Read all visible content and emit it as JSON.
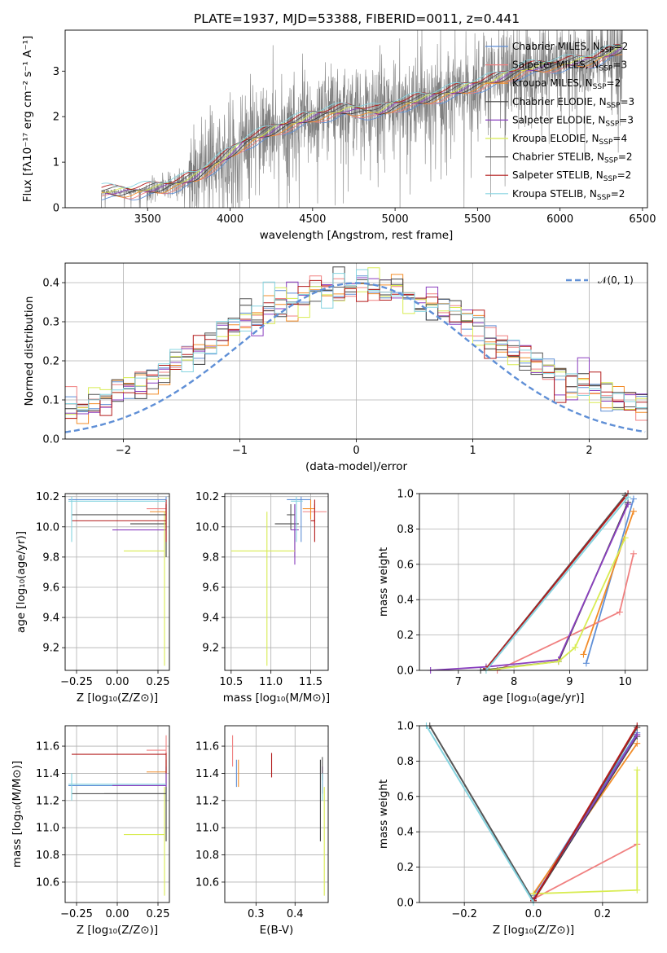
{
  "figure": {
    "title": "PLATE=1937, MJD=53388, FIBERID=0011, z=0.441"
  },
  "series_styles": [
    {
      "name": "Chabrier MILES",
      "nssp": "2",
      "color": "#5f8fd6"
    },
    {
      "name": "Salpeter MILES",
      "nssp": "3",
      "color": "#f08080"
    },
    {
      "name": "Kroupa MILES",
      "nssp": "2",
      "color": "#f28c28"
    },
    {
      "name": "Chabrier ELODIE",
      "nssp": "3",
      "color": "#3f3f3f"
    },
    {
      "name": "Salpeter ELODIE",
      "nssp": "3",
      "color": "#8a3fbf"
    },
    {
      "name": "Kroupa ELODIE",
      "nssp": "4",
      "color": "#d8ec52"
    },
    {
      "name": "Chabrier STELIB",
      "nssp": "2",
      "color": "#555555"
    },
    {
      "name": "Salpeter STELIB",
      "nssp": "2",
      "color": "#b31b1b"
    },
    {
      "name": "Kroupa STELIB",
      "nssp": "2",
      "color": "#86d4e0"
    }
  ],
  "chart_data": [
    {
      "id": "spectrum",
      "type": "line",
      "xlabel": "wavelength [Angstrom, rest frame]",
      "ylabel": "Flux [fλ10⁻¹⁷ erg cm⁻² s⁻¹ A⁻¹]",
      "xlim": [
        3000,
        6530
      ],
      "ylim": [
        0,
        3.9
      ],
      "xticks": [
        "3500",
        "4000",
        "4500",
        "5000",
        "5500",
        "6000",
        "6500"
      ],
      "yticks": [
        "0",
        "1",
        "2",
        "3"
      ],
      "legend": "top-right",
      "data_start": 3220,
      "model_anchor_x": [
        3220,
        3400,
        3600,
        3700,
        3800,
        3950,
        4100,
        4300,
        4500,
        4700,
        4900,
        5000,
        5200,
        5400,
        5600,
        5800,
        6000,
        6200,
        6380
      ],
      "model_anchor_y": [
        0.35,
        0.35,
        0.45,
        0.55,
        0.7,
        1.05,
        1.45,
        1.75,
        2.0,
        2.15,
        2.1,
        2.25,
        2.4,
        2.6,
        2.8,
        3.05,
        3.15,
        3.25,
        3.5
      ],
      "legend_entries": [
        {
          "name": "Chabrier MILES",
          "nssp": "2"
        },
        {
          "name": "Salpeter MILES",
          "nssp": "3"
        },
        {
          "name": "Kroupa MILES",
          "nssp": "2"
        },
        {
          "name": "Chabrier ELODIE",
          "nssp": "3"
        },
        {
          "name": "Salpeter ELODIE",
          "nssp": "3"
        },
        {
          "name": "Kroupa ELODIE",
          "nssp": "4"
        },
        {
          "name": "Chabrier STELIB",
          "nssp": "2"
        },
        {
          "name": "Salpeter STELIB",
          "nssp": "2"
        },
        {
          "name": "Kroupa STELIB",
          "nssp": "2"
        }
      ]
    },
    {
      "id": "residuals",
      "type": "bar",
      "xlabel": "(data-model)/error",
      "ylabel": "Normed distribution",
      "xlim": [
        -2.5,
        2.5
      ],
      "ylim": [
        0,
        0.45
      ],
      "xticks": [
        "−2",
        "−1",
        "0",
        "1",
        "2"
      ],
      "yticks": [
        "0.0",
        "0.1",
        "0.2",
        "0.3",
        "0.4"
      ],
      "legend": "top-right",
      "legend_label": "𝒩(0, 1)",
      "bin_width": 0.1,
      "bin_start": -2.5
    },
    {
      "id": "age_vs_Z",
      "type": "scatter",
      "xlabel": "Z [log₁₀(Z/Z⊙)]",
      "ylabel": "age  [log₁₀(age/yr)]",
      "xlim": [
        -0.32,
        0.32
      ],
      "ylim": [
        9.05,
        10.22
      ],
      "xticks": [
        "−0.25",
        "0.00",
        "0.25"
      ],
      "yticks": [
        "9.2",
        "9.4",
        "9.6",
        "9.8",
        "10.0",
        "10.2"
      ],
      "points": [
        {
          "x": 0.3,
          "y": 10.18,
          "xlo": -0.3,
          "xhi": 0.3,
          "ylo": 10.15,
          "yhi": 10.2
        },
        {
          "x": 0.3,
          "y": 10.12,
          "xlo": 0.18,
          "xhi": 0.3,
          "ylo": 10.05,
          "yhi": 10.18
        },
        {
          "x": 0.3,
          "y": 10.1,
          "xlo": 0.2,
          "xhi": 0.3,
          "ylo": 10.02,
          "yhi": 10.15
        },
        {
          "x": 0.3,
          "y": 10.02,
          "xlo": 0.08,
          "xhi": 0.3,
          "ylo": 9.8,
          "yhi": 10.15
        },
        {
          "x": 0.3,
          "y": 9.98,
          "xlo": -0.03,
          "xhi": 0.3,
          "ylo": 9.9,
          "yhi": 10.15
        },
        {
          "x": 0.29,
          "y": 9.84,
          "xlo": 0.04,
          "xhi": 0.29,
          "ylo": 9.08,
          "yhi": 10.1
        },
        {
          "x": 0.3,
          "y": 10.08,
          "xlo": -0.28,
          "xhi": 0.3,
          "ylo": 9.98,
          "yhi": 10.15
        },
        {
          "x": 0.3,
          "y": 10.04,
          "xlo": -0.28,
          "xhi": 0.3,
          "ylo": 9.9,
          "yhi": 10.18
        },
        {
          "x": -0.28,
          "y": 10.17,
          "xlo": -0.3,
          "xhi": 0.3,
          "ylo": 9.9,
          "yhi": 10.2
        }
      ]
    },
    {
      "id": "age_vs_mass",
      "type": "scatter",
      "xlabel": "mass [log₁₀(M/M⊙)]",
      "ylabel": "",
      "xlim": [
        10.42,
        11.72
      ],
      "ylim": [
        9.05,
        10.22
      ],
      "xticks": [
        "10.5",
        "11.0",
        "11.5"
      ],
      "yticks": [
        "9.2",
        "9.4",
        "9.6",
        "9.8",
        "10.0",
        "10.2"
      ],
      "points": [
        {
          "x": 11.38,
          "y": 10.18,
          "xlo": 11.2,
          "xhi": 11.5,
          "ylo": 9.9,
          "yhi": 10.2
        },
        {
          "x": 11.55,
          "y": 10.1,
          "xlo": 11.4,
          "xhi": 11.7,
          "ylo": 10.02,
          "yhi": 10.15
        },
        {
          "x": 11.5,
          "y": 10.12,
          "xlo": 11.4,
          "xhi": 11.55,
          "ylo": 10.05,
          "yhi": 10.18
        },
        {
          "x": 11.3,
          "y": 10.02,
          "xlo": 11.05,
          "xhi": 11.35,
          "ylo": 9.8,
          "yhi": 10.15
        },
        {
          "x": 11.3,
          "y": 9.98,
          "xlo": 11.25,
          "xhi": 11.35,
          "ylo": 9.75,
          "yhi": 10.15
        },
        {
          "x": 10.95,
          "y": 9.84,
          "xlo": 10.5,
          "xhi": 11.3,
          "ylo": 9.08,
          "yhi": 10.1
        },
        {
          "x": 11.25,
          "y": 10.08,
          "xlo": 11.2,
          "xhi": 11.3,
          "ylo": 9.98,
          "yhi": 10.15
        },
        {
          "x": 11.55,
          "y": 10.04,
          "xlo": 11.5,
          "xhi": 11.55,
          "ylo": 9.9,
          "yhi": 10.18
        },
        {
          "x": 11.32,
          "y": 10.17,
          "xlo": 11.25,
          "xhi": 11.4,
          "ylo": 9.9,
          "yhi": 10.2
        }
      ]
    },
    {
      "id": "mass_weight_vs_age",
      "type": "line",
      "xlabel": "age  [log₁₀(age/yr)]",
      "ylabel": "mass weight",
      "xlim": [
        6.3,
        10.4
      ],
      "ylim": [
        0,
        1.0
      ],
      "xticks": [
        "7",
        "8",
        "9",
        "10"
      ],
      "yticks": [
        "0.0",
        "0.2",
        "0.4",
        "0.6",
        "0.8",
        "1.0"
      ],
      "series": [
        {
          "x": [
            9.3,
            10.15
          ],
          "y": [
            0.04,
            0.97
          ]
        },
        {
          "x": [
            7.7,
            9.9,
            10.15
          ],
          "y": [
            0.0,
            0.33,
            0.66
          ]
        },
        {
          "x": [
            9.25,
            10.15
          ],
          "y": [
            0.09,
            0.9
          ]
        },
        {
          "x": [
            7.4,
            8.8,
            10.05
          ],
          "y": [
            0.0,
            0.05,
            0.95
          ]
        },
        {
          "x": [
            6.5,
            7.5,
            8.8,
            10.05
          ],
          "y": [
            0.0,
            0.02,
            0.06,
            0.94
          ]
        },
        {
          "x": [
            7.5,
            8.8,
            9.1,
            10.0
          ],
          "y": [
            0.0,
            0.05,
            0.13,
            0.75
          ]
        },
        {
          "x": [
            7.5,
            10.0
          ],
          "y": [
            0.01,
            0.99
          ]
        },
        {
          "x": [
            7.5,
            10.05
          ],
          "y": [
            0.01,
            1.0
          ]
        },
        {
          "x": [
            7.5,
            10.05
          ],
          "y": [
            0.0,
            0.98
          ]
        }
      ]
    },
    {
      "id": "mass_vs_Z",
      "type": "scatter",
      "xlabel": "Z [log₁₀(Z/Z⊙)]",
      "ylabel": "mass [log₁₀(M/M⊙)]",
      "xlim": [
        -0.32,
        0.32
      ],
      "ylim": [
        10.45,
        11.75
      ],
      "xticks": [
        "−0.25",
        "0.00",
        "0.25"
      ],
      "yticks": [
        "10.6",
        "10.8",
        "11.0",
        "11.2",
        "11.4",
        "11.6"
      ],
      "points": [
        {
          "x": 0.3,
          "y": 11.31,
          "xlo": -0.3,
          "xhi": 0.3,
          "ylo": 11.2,
          "yhi": 11.45
        },
        {
          "x": 0.3,
          "y": 11.57,
          "xlo": 0.18,
          "xhi": 0.3,
          "ylo": 11.45,
          "yhi": 11.68
        },
        {
          "x": 0.3,
          "y": 11.41,
          "xlo": 0.18,
          "xhi": 0.3,
          "ylo": 11.3,
          "yhi": 11.5
        },
        {
          "x": 0.3,
          "y": 11.25,
          "xlo": -0.08,
          "xhi": 0.3,
          "ylo": 10.9,
          "yhi": 11.5
        },
        {
          "x": 0.3,
          "y": 11.31,
          "xlo": -0.03,
          "xhi": 0.3,
          "ylo": 11.25,
          "yhi": 11.45
        },
        {
          "x": 0.29,
          "y": 10.95,
          "xlo": 0.04,
          "xhi": 0.29,
          "ylo": 10.5,
          "yhi": 11.3
        },
        {
          "x": 0.3,
          "y": 11.25,
          "xlo": -0.28,
          "xhi": 0.3,
          "ylo": 11.2,
          "yhi": 11.3
        },
        {
          "x": 0.3,
          "y": 11.54,
          "xlo": -0.28,
          "xhi": 0.3,
          "ylo": 11.4,
          "yhi": 11.55
        },
        {
          "x": -0.28,
          "y": 11.32,
          "xlo": -0.3,
          "xhi": 0.3,
          "ylo": 11.2,
          "yhi": 11.4
        }
      ]
    },
    {
      "id": "mass_vs_ebv",
      "type": "scatter",
      "xlabel": "E(B-V)",
      "ylabel": "",
      "xlim": [
        0.22,
        0.485
      ],
      "ylim": [
        10.45,
        11.75
      ],
      "xticks": [
        "0.3",
        "0.4"
      ],
      "yticks": [
        "10.6",
        "10.8",
        "11.0",
        "11.2",
        "11.4",
        "11.6"
      ],
      "points": [
        {
          "x": 0.25,
          "y": 11.4,
          "ylo": 11.3,
          "yhi": 11.5
        },
        {
          "x": 0.24,
          "y": 11.57,
          "ylo": 11.45,
          "yhi": 11.68
        },
        {
          "x": 0.255,
          "y": 11.41,
          "ylo": 11.3,
          "yhi": 11.5
        },
        {
          "x": 0.465,
          "y": 11.25,
          "ylo": 10.9,
          "yhi": 11.5
        },
        {
          "x": 0.47,
          "y": 11.31,
          "ylo": 11.25,
          "yhi": 11.45
        },
        {
          "x": 0.475,
          "y": 10.95,
          "ylo": 10.5,
          "yhi": 11.3
        },
        {
          "x": 0.47,
          "y": 11.42,
          "ylo": 11.35,
          "yhi": 11.52
        },
        {
          "x": 0.34,
          "y": 11.45,
          "ylo": 11.37,
          "yhi": 11.55
        },
        {
          "x": 0.47,
          "y": 11.3,
          "ylo": 11.2,
          "yhi": 11.4
        }
      ]
    },
    {
      "id": "mass_weight_vs_Z",
      "type": "line",
      "xlabel": "Z [log₁₀(Z/Z⊙)]",
      "ylabel": "mass weight",
      "xlim": [
        -0.33,
        0.33
      ],
      "ylim": [
        0,
        1.0
      ],
      "xticks": [
        "−0.2",
        "0.0",
        "0.2"
      ],
      "yticks": [
        "0.0",
        "0.2",
        "0.4",
        "0.6",
        "0.8",
        "1.0"
      ],
      "series": [
        {
          "x": [
            0.0,
            0.3
          ],
          "y": [
            0.04,
            0.96
          ]
        },
        {
          "x": [
            0.0,
            0.3
          ],
          "y": [
            0.02,
            0.33
          ]
        },
        {
          "x": [
            0.0,
            0.3
          ],
          "y": [
            0.05,
            0.9
          ]
        },
        {
          "x": [
            0.0,
            0.3
          ],
          "y": [
            0.01,
            0.94
          ]
        },
        {
          "x": [
            0.0,
            0.3
          ],
          "y": [
            0.02,
            0.95
          ]
        },
        {
          "x": [
            0.0,
            0.3,
            0.3
          ],
          "y": [
            0.05,
            0.07,
            0.75
          ]
        },
        {
          "x": [
            -0.3,
            0.0,
            0.3
          ],
          "y": [
            1.0,
            0.01,
            0.99
          ]
        },
        {
          "x": [
            0.0,
            0.3
          ],
          "y": [
            0.01,
            1.0
          ]
        },
        {
          "x": [
            -0.31,
            0.0
          ],
          "y": [
            1.0,
            0.0
          ]
        }
      ]
    }
  ]
}
